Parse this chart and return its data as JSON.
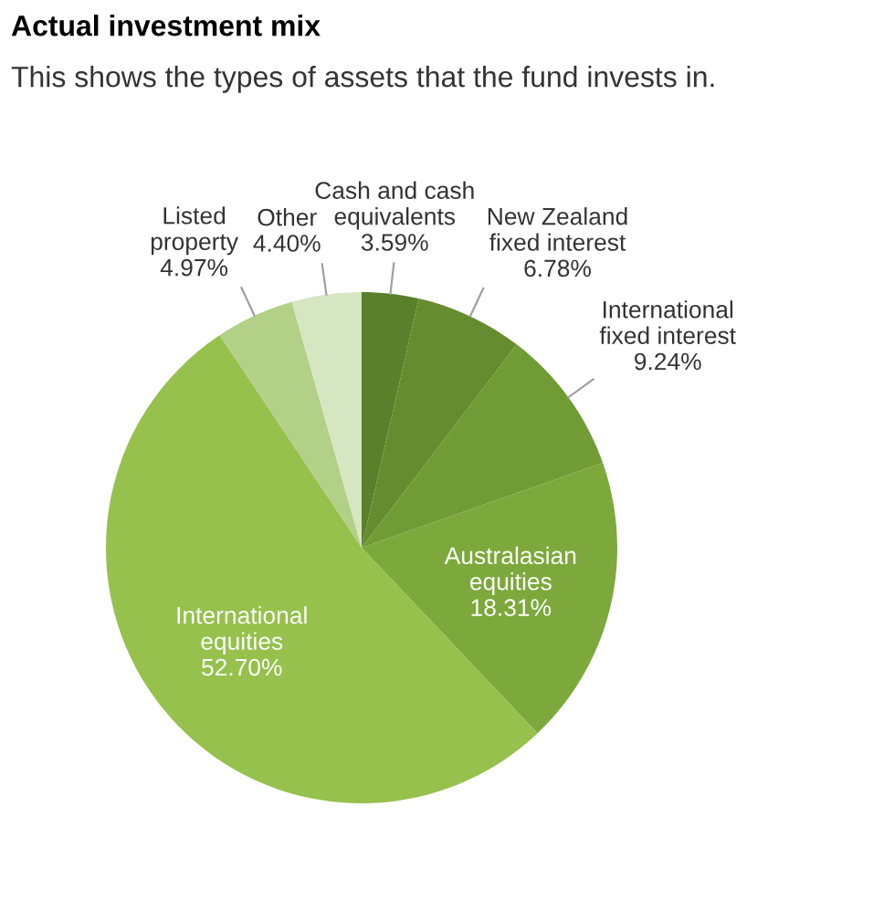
{
  "chart_data": {
    "type": "pie",
    "title": "Actual investment mix",
    "subtitle": "This shows the types of assets that the fund invests in.",
    "categories": [
      "Cash and cash\nequivalents",
      "New Zealand\nfixed interest",
      "International\nfixed interest",
      "Australasian\nequities",
      "International\nequities",
      "Listed\nproperty",
      "Other"
    ],
    "values": [
      3.59,
      6.78,
      9.24,
      18.31,
      52.7,
      4.97,
      4.4
    ],
    "value_labels": [
      "3.59%",
      "6.78%",
      "9.24%",
      "18.31%",
      "52.70%",
      "4.97%",
      "4.40%"
    ],
    "colors": [
      "#5b802b",
      "#658d2f",
      "#709b35",
      "#7da93c",
      "#95c14c",
      "#b2d086",
      "#d6e5c2"
    ],
    "legend": false
  }
}
